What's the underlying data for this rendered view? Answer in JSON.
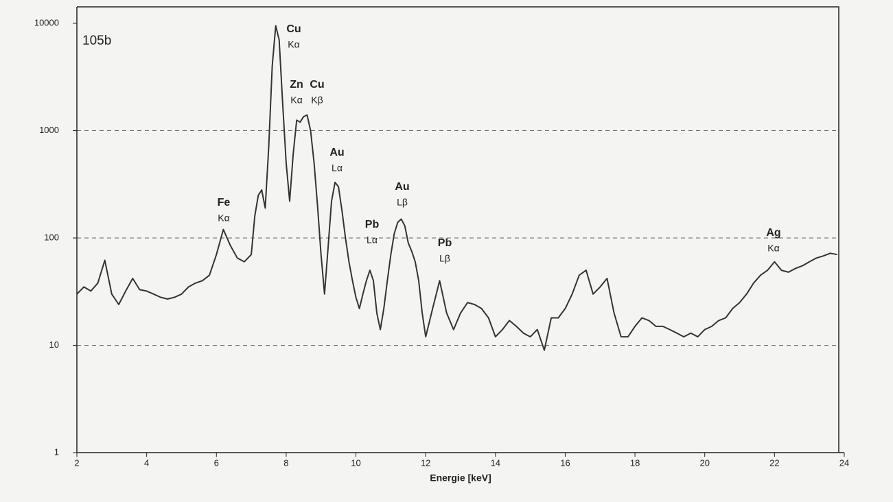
{
  "chart_data": {
    "type": "line",
    "title": "105b",
    "xlabel": "Energie [keV]",
    "color": "#333333",
    "log_y": true,
    "grid": true,
    "x": [
      2.0,
      2.2,
      2.4,
      2.6,
      2.8,
      3.0,
      3.2,
      3.4,
      3.6,
      3.8,
      4.0,
      4.2,
      4.4,
      4.6,
      4.8,
      5.0,
      5.2,
      5.4,
      5.6,
      5.8,
      6.0,
      6.2,
      6.4,
      6.6,
      6.8,
      7.0,
      7.1,
      7.2,
      7.3,
      7.4,
      7.5,
      7.6,
      7.7,
      7.8,
      7.9,
      8.0,
      8.1,
      8.2,
      8.3,
      8.4,
      8.5,
      8.6,
      8.7,
      8.8,
      8.9,
      9.0,
      9.1,
      9.2,
      9.3,
      9.4,
      9.5,
      9.6,
      9.7,
      9.8,
      9.9,
      10.0,
      10.1,
      10.2,
      10.3,
      10.4,
      10.5,
      10.6,
      10.7,
      10.8,
      10.9,
      11.0,
      11.1,
      11.2,
      11.3,
      11.4,
      11.5,
      11.6,
      11.7,
      11.8,
      11.9,
      12.0,
      12.2,
      12.4,
      12.6,
      12.8,
      13.0,
      13.2,
      13.4,
      13.6,
      13.8,
      14.0,
      14.2,
      14.4,
      14.6,
      14.8,
      15.0,
      15.2,
      15.4,
      15.6,
      15.8,
      16.0,
      16.2,
      16.4,
      16.6,
      16.8,
      17.0,
      17.2,
      17.4,
      17.6,
      17.8,
      18.0,
      18.2,
      18.4,
      18.6,
      18.8,
      19.0,
      19.2,
      19.4,
      19.6,
      19.8,
      20.0,
      20.2,
      20.4,
      20.6,
      20.8,
      21.0,
      21.2,
      21.4,
      21.6,
      21.8,
      22.0,
      22.2,
      22.4,
      22.6,
      22.8,
      23.0,
      23.2,
      23.4,
      23.6,
      23.8
    ],
    "values": [
      30,
      35,
      32,
      38,
      62,
      30,
      24,
      32,
      42,
      33,
      32,
      30,
      28,
      27,
      28,
      30,
      35,
      38,
      40,
      45,
      70,
      120,
      85,
      65,
      60,
      70,
      160,
      250,
      280,
      190,
      700,
      4000,
      9500,
      7000,
      1800,
      500,
      220,
      600,
      1250,
      1200,
      1350,
      1400,
      1000,
      500,
      200,
      70,
      30,
      80,
      220,
      330,
      300,
      180,
      100,
      60,
      40,
      28,
      22,
      30,
      40,
      50,
      40,
      20,
      14,
      22,
      40,
      70,
      110,
      140,
      150,
      130,
      90,
      75,
      60,
      40,
      20,
      12,
      22,
      40,
      20,
      14,
      20,
      25,
      24,
      22,
      18,
      12,
      14,
      17,
      15,
      13,
      12,
      14,
      9,
      18,
      18,
      22,
      30,
      45,
      50,
      30,
      35,
      42,
      20,
      12,
      12,
      15,
      18,
      17,
      15,
      15,
      14,
      13,
      12,
      13,
      12,
      14,
      15,
      17,
      18,
      22,
      25,
      30,
      38,
      45,
      50,
      60,
      50,
      48,
      52,
      55,
      60,
      65,
      68,
      72,
      70
    ],
    "xlim": [
      2,
      24
    ],
    "xticks": [
      2,
      4,
      6,
      8,
      10,
      12,
      14,
      16,
      18,
      20,
      22,
      24
    ],
    "ylim": [
      1,
      10000
    ],
    "yticks": [
      1,
      10,
      100,
      1000,
      10000
    ],
    "annotations": [
      {
        "element": "Cu",
        "line": "Kα"
      },
      {
        "element": "Zn",
        "line": "Kα"
      },
      {
        "element": "Cu",
        "line": "Kβ"
      },
      {
        "element": "Au",
        "line": "Lα"
      },
      {
        "element": "Fe",
        "line": "Kα"
      },
      {
        "element": "Au",
        "line": "Lβ"
      },
      {
        "element": "Pb",
        "line": "Lα"
      },
      {
        "element": "Pb",
        "line": "Lβ"
      },
      {
        "element": "Ag",
        "line": "Kα"
      }
    ]
  }
}
